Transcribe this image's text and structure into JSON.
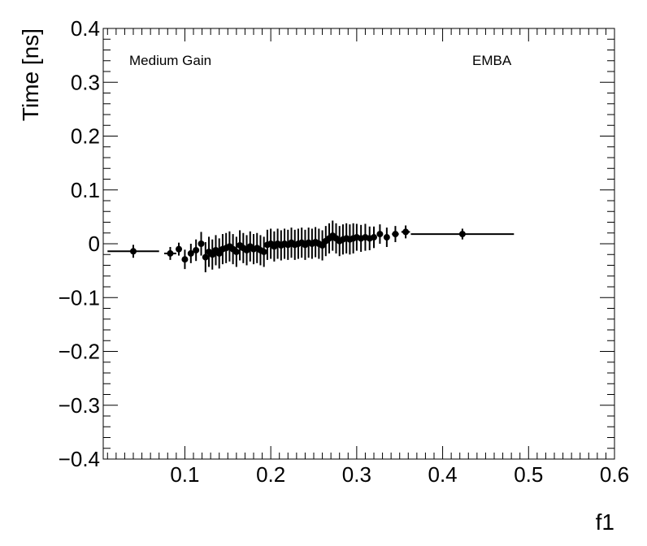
{
  "chart_data": {
    "type": "scatter",
    "title": "",
    "xlabel": "f1",
    "ylabel": "Time [ns]",
    "xlim": [
      0.005,
      0.6
    ],
    "ylim": [
      -0.4,
      0.4
    ],
    "x_ticks": [
      0.1,
      0.2,
      0.3,
      0.4,
      0.5,
      0.6
    ],
    "x_tick_labels": [
      "0.1",
      "0.2",
      "0.3",
      "0.4",
      "0.5",
      "0.6"
    ],
    "y_ticks": [
      -0.4,
      -0.3,
      -0.2,
      -0.1,
      0,
      0.1,
      0.2,
      0.3,
      0.4
    ],
    "y_tick_labels": [
      "−0.4",
      "−0.3",
      "−0.2",
      "−0.1",
      "0",
      "0.1",
      "0.2",
      "0.3",
      "0.4"
    ],
    "annotations": [
      "Medium Gain",
      "EMBA"
    ],
    "grid": false,
    "series": [
      {
        "marker": "filled-circle",
        "color": "#000000",
        "points": [
          {
            "x": 0.04,
            "y": -0.014,
            "xerr": 0.03,
            "yerr": 0.012
          },
          {
            "x": 0.083,
            "y": -0.018,
            "xerr": 0.007,
            "yerr": 0.012
          },
          {
            "x": 0.093,
            "y": -0.01,
            "xerr": 0.002,
            "yerr": 0.012
          },
          {
            "x": 0.1,
            "y": -0.029,
            "xerr": 0.002,
            "yerr": 0.018
          },
          {
            "x": 0.107,
            "y": -0.018,
            "xerr": 0.002,
            "yerr": 0.018
          },
          {
            "x": 0.113,
            "y": -0.012,
            "xerr": 0.002,
            "yerr": 0.02
          },
          {
            "x": 0.119,
            "y": 0.0,
            "xerr": 0.002,
            "yerr": 0.022
          },
          {
            "x": 0.124,
            "y": -0.025,
            "xerr": 0.002,
            "yerr": 0.028
          },
          {
            "x": 0.128,
            "y": -0.015,
            "xerr": 0.002,
            "yerr": 0.028
          },
          {
            "x": 0.132,
            "y": -0.02,
            "xerr": 0.002,
            "yerr": 0.028
          },
          {
            "x": 0.136,
            "y": -0.012,
            "xerr": 0.002,
            "yerr": 0.028
          },
          {
            "x": 0.14,
            "y": -0.018,
            "xerr": 0.002,
            "yerr": 0.028
          },
          {
            "x": 0.144,
            "y": -0.01,
            "xerr": 0.002,
            "yerr": 0.028
          },
          {
            "x": 0.148,
            "y": -0.008,
            "xerr": 0.002,
            "yerr": 0.028
          },
          {
            "x": 0.152,
            "y": -0.005,
            "xerr": 0.002,
            "yerr": 0.028
          },
          {
            "x": 0.156,
            "y": -0.01,
            "xerr": 0.002,
            "yerr": 0.028
          },
          {
            "x": 0.16,
            "y": -0.015,
            "xerr": 0.002,
            "yerr": 0.028
          },
          {
            "x": 0.164,
            "y": -0.003,
            "xerr": 0.002,
            "yerr": 0.028
          },
          {
            "x": 0.168,
            "y": -0.008,
            "xerr": 0.002,
            "yerr": 0.028
          },
          {
            "x": 0.172,
            "y": -0.012,
            "xerr": 0.002,
            "yerr": 0.028
          },
          {
            "x": 0.176,
            "y": -0.005,
            "xerr": 0.002,
            "yerr": 0.028
          },
          {
            "x": 0.18,
            "y": -0.01,
            "xerr": 0.002,
            "yerr": 0.028
          },
          {
            "x": 0.184,
            "y": -0.008,
            "xerr": 0.002,
            "yerr": 0.028
          },
          {
            "x": 0.188,
            "y": -0.012,
            "xerr": 0.002,
            "yerr": 0.028
          },
          {
            "x": 0.192,
            "y": -0.015,
            "xerr": 0.002,
            "yerr": 0.028
          },
          {
            "x": 0.196,
            "y": -0.002,
            "xerr": 0.002,
            "yerr": 0.028
          },
          {
            "x": 0.2,
            "y": 0.0,
            "xerr": 0.002,
            "yerr": 0.028
          },
          {
            "x": 0.204,
            "y": -0.005,
            "xerr": 0.002,
            "yerr": 0.028
          },
          {
            "x": 0.208,
            "y": 0.0,
            "xerr": 0.002,
            "yerr": 0.028
          },
          {
            "x": 0.212,
            "y": -0.003,
            "xerr": 0.002,
            "yerr": 0.028
          },
          {
            "x": 0.216,
            "y": 0.0,
            "xerr": 0.002,
            "yerr": 0.028
          },
          {
            "x": 0.22,
            "y": -0.002,
            "xerr": 0.002,
            "yerr": 0.028
          },
          {
            "x": 0.224,
            "y": 0.002,
            "xerr": 0.002,
            "yerr": 0.028
          },
          {
            "x": 0.228,
            "y": -0.002,
            "xerr": 0.002,
            "yerr": 0.028
          },
          {
            "x": 0.232,
            "y": 0.0,
            "xerr": 0.002,
            "yerr": 0.028
          },
          {
            "x": 0.236,
            "y": 0.002,
            "xerr": 0.002,
            "yerr": 0.028
          },
          {
            "x": 0.24,
            "y": -0.002,
            "xerr": 0.002,
            "yerr": 0.028
          },
          {
            "x": 0.244,
            "y": 0.002,
            "xerr": 0.002,
            "yerr": 0.028
          },
          {
            "x": 0.248,
            "y": 0.0,
            "xerr": 0.002,
            "yerr": 0.028
          },
          {
            "x": 0.252,
            "y": 0.003,
            "xerr": 0.002,
            "yerr": 0.028
          },
          {
            "x": 0.256,
            "y": 0.0,
            "xerr": 0.002,
            "yerr": 0.028
          },
          {
            "x": 0.26,
            "y": -0.003,
            "xerr": 0.002,
            "yerr": 0.028
          },
          {
            "x": 0.264,
            "y": 0.005,
            "xerr": 0.002,
            "yerr": 0.028
          },
          {
            "x": 0.268,
            "y": 0.01,
            "xerr": 0.002,
            "yerr": 0.028
          },
          {
            "x": 0.272,
            "y": 0.015,
            "xerr": 0.002,
            "yerr": 0.028
          },
          {
            "x": 0.276,
            "y": 0.01,
            "xerr": 0.002,
            "yerr": 0.028
          },
          {
            "x": 0.28,
            "y": 0.005,
            "xerr": 0.002,
            "yerr": 0.028
          },
          {
            "x": 0.284,
            "y": 0.008,
            "xerr": 0.002,
            "yerr": 0.028
          },
          {
            "x": 0.288,
            "y": 0.01,
            "xerr": 0.002,
            "yerr": 0.028
          },
          {
            "x": 0.292,
            "y": 0.008,
            "xerr": 0.002,
            "yerr": 0.028
          },
          {
            "x": 0.296,
            "y": 0.01,
            "xerr": 0.002,
            "yerr": 0.028
          },
          {
            "x": 0.3,
            "y": 0.012,
            "xerr": 0.002,
            "yerr": 0.025
          },
          {
            "x": 0.305,
            "y": 0.01,
            "xerr": 0.002,
            "yerr": 0.025
          },
          {
            "x": 0.31,
            "y": 0.012,
            "xerr": 0.002,
            "yerr": 0.025
          },
          {
            "x": 0.315,
            "y": 0.01,
            "xerr": 0.002,
            "yerr": 0.022
          },
          {
            "x": 0.32,
            "y": 0.012,
            "xerr": 0.002,
            "yerr": 0.02
          },
          {
            "x": 0.327,
            "y": 0.018,
            "xerr": 0.003,
            "yerr": 0.018
          },
          {
            "x": 0.335,
            "y": 0.012,
            "xerr": 0.003,
            "yerr": 0.018
          },
          {
            "x": 0.345,
            "y": 0.018,
            "xerr": 0.004,
            "yerr": 0.015
          },
          {
            "x": 0.357,
            "y": 0.022,
            "xerr": 0.005,
            "yerr": 0.012
          },
          {
            "x": 0.423,
            "y": 0.018,
            "xerr": 0.06,
            "yerr": 0.01
          }
        ]
      }
    ]
  }
}
